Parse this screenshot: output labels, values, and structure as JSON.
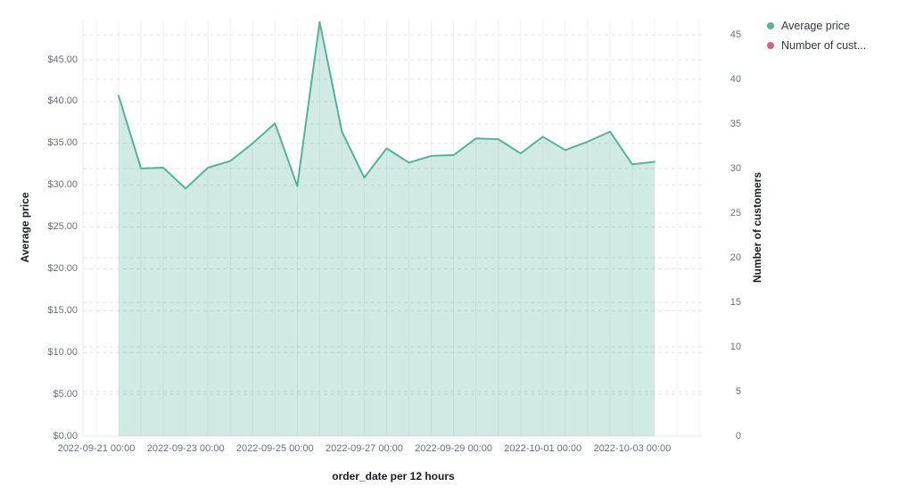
{
  "legend": {
    "items": [
      {
        "label": "Average price",
        "color": "#54B399"
      },
      {
        "label": "Number of cust...",
        "color": "#D36086"
      }
    ]
  },
  "axes": {
    "x": {
      "title": "order_date per 12 hours",
      "tick_labels": [
        "2022-09-21 00:00",
        "2022-09-23 00:00",
        "2022-09-25 00:00",
        "2022-09-27 00:00",
        "2022-09-29 00:00",
        "2022-10-01 00:00",
        "2022-10-03 00:00"
      ]
    },
    "y_left": {
      "title": "Average price",
      "tick_labels": [
        "$0.00",
        "$5.00",
        "$10.00",
        "$15.00",
        "$20.00",
        "$25.00",
        "$30.00",
        "$35.00",
        "$40.00",
        "$45.00"
      ],
      "tick_values": [
        0,
        5,
        10,
        15,
        20,
        25,
        30,
        35,
        40,
        45
      ]
    },
    "y_right": {
      "title": "Number of customers",
      "tick_labels": [
        "0",
        "5",
        "10",
        "15",
        "20",
        "25",
        "30",
        "35",
        "40",
        "45"
      ],
      "tick_values": [
        0,
        5,
        10,
        15,
        20,
        25,
        30,
        35,
        40,
        45
      ]
    }
  },
  "chart_data": {
    "type": "area",
    "title": "",
    "xlabel": "order_date per 12 hours",
    "ylabel_left": "Average price",
    "ylabel_right": "Number of customers",
    "ylim_left": [
      0,
      50
    ],
    "ylim_right": [
      0,
      46.9
    ],
    "x_interval": "12 hours",
    "grid": true,
    "legend_position": "top-right",
    "x": [
      "2022-09-21 12:00",
      "2022-09-22 00:00",
      "2022-09-22 12:00",
      "2022-09-23 00:00",
      "2022-09-23 12:00",
      "2022-09-24 00:00",
      "2022-09-24 12:00",
      "2022-09-25 00:00",
      "2022-09-25 12:00",
      "2022-09-26 00:00",
      "2022-09-26 12:00",
      "2022-09-27 00:00",
      "2022-09-27 12:00",
      "2022-09-28 00:00",
      "2022-09-28 12:00",
      "2022-09-29 00:00",
      "2022-09-29 12:00",
      "2022-09-30 00:00",
      "2022-09-30 12:00",
      "2022-10-01 00:00",
      "2022-10-01 12:00",
      "2022-10-02 00:00",
      "2022-10-02 12:00",
      "2022-10-03 00:00",
      "2022-10-03 12:00"
    ],
    "series": [
      {
        "name": "Average price",
        "axis": "left",
        "color": "#54B399",
        "fill_opacity": 0.27,
        "values": [
          40.7,
          32.0,
          32.1,
          29.6,
          32.1,
          32.9,
          35.0,
          37.4,
          29.9,
          49.5,
          36.4,
          30.9,
          34.4,
          32.7,
          33.5,
          33.6,
          35.6,
          35.5,
          33.8,
          35.8,
          34.2,
          35.2,
          36.4,
          32.5,
          32.8
        ]
      },
      {
        "name": "Number of customers",
        "axis": "right",
        "color": "#D36086",
        "values": [],
        "visible_in_plot": false
      }
    ]
  },
  "style": {
    "v_gridline_color": "#f0f1f4",
    "h_gridline_color": "#e3e5ea",
    "axis_line_color": "#e6e8ed"
  }
}
